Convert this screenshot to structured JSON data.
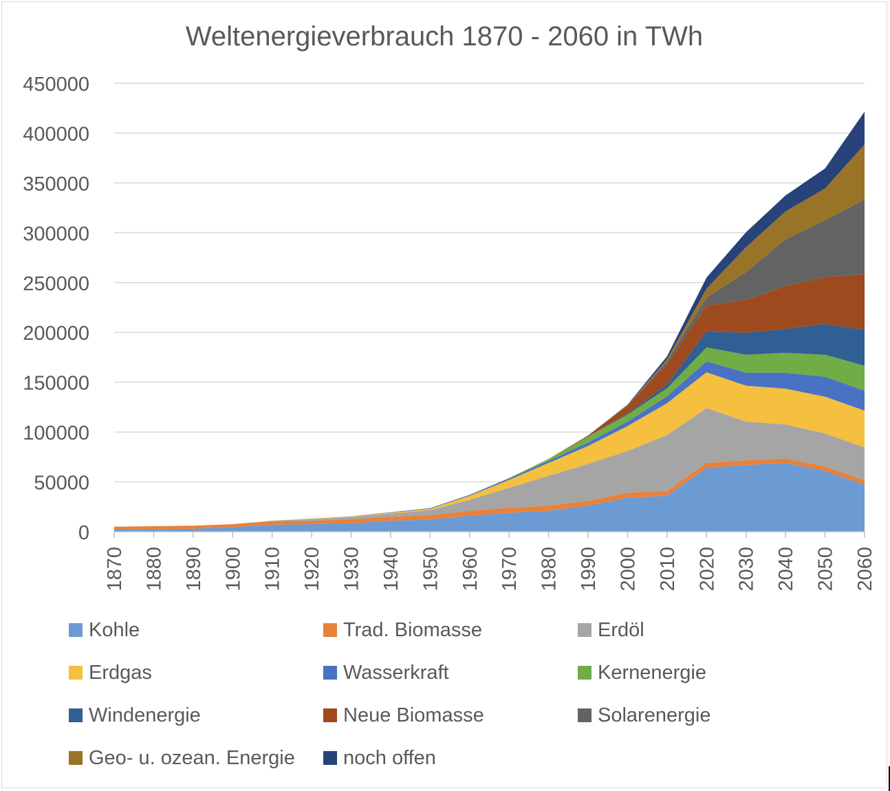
{
  "chart_data": {
    "type": "area",
    "stacked": true,
    "title": "Weltenergieverbrauch 1870 - 2060 in TWh",
    "xlabel": "",
    "ylabel": "",
    "ylim": [
      0,
      450000
    ],
    "yticks": [
      0,
      50000,
      100000,
      150000,
      200000,
      250000,
      300000,
      350000,
      400000,
      450000
    ],
    "ytick_labels": [
      "0",
      "50000",
      "100000",
      "150000",
      "200000",
      "250000",
      "300000",
      "350000",
      "400000",
      "450000"
    ],
    "gridlines": true,
    "legend_position": "bottom",
    "categories": [
      "1870",
      "1880",
      "1890",
      "1900",
      "1910",
      "1920",
      "1930",
      "1940",
      "1950",
      "1960",
      "1970",
      "1980",
      "1990",
      "2000",
      "2010",
      "2020",
      "2030",
      "2040",
      "2050",
      "2060"
    ],
    "series": [
      {
        "name": "Kohle",
        "color": "#6b9bd2",
        "values": [
          2000,
          2500,
          3000,
          4500,
          7000,
          7500,
          8500,
          11000,
          12000,
          16000,
          19000,
          21000,
          26000,
          34000,
          36000,
          64000,
          67000,
          69000,
          61000,
          47000
        ]
      },
      {
        "name": "Trad. Biomasse",
        "color": "#e8813a",
        "values": [
          3000,
          3000,
          3000,
          3000,
          3500,
          3500,
          4000,
          4000,
          4500,
          5000,
          5000,
          5000,
          5000,
          5000,
          5000,
          5000,
          4500,
          4500,
          4500,
          4500
        ]
      },
      {
        "name": "Erdöl",
        "color": "#a5a5a5",
        "values": [
          0,
          0,
          0,
          100,
          500,
          1500,
          2000,
          3000,
          5000,
          11000,
          20000,
          30000,
          37000,
          42000,
          56000,
          55000,
          39000,
          34000,
          33000,
          33000
        ]
      },
      {
        "name": "Erdgas",
        "color": "#f5bf3f",
        "values": [
          0,
          0,
          0,
          0,
          100,
          500,
          500,
          1000,
          1500,
          4000,
          8000,
          13000,
          18000,
          25000,
          32000,
          36000,
          36000,
          36000,
          37000,
          37000
        ]
      },
      {
        "name": "Wasserkraft",
        "color": "#4a72c4",
        "values": [
          0,
          0,
          0,
          0,
          0,
          100,
          300,
          500,
          700,
          1000,
          1500,
          2000,
          3500,
          4500,
          7000,
          11000,
          13000,
          16000,
          20000,
          20000
        ]
      },
      {
        "name": "Kernenergie",
        "color": "#70ad47",
        "values": [
          0,
          0,
          0,
          0,
          0,
          0,
          0,
          0,
          0,
          0,
          300,
          2000,
          6000,
          7000,
          8000,
          14000,
          18000,
          20000,
          22000,
          25000
        ]
      },
      {
        "name": "Windenergie",
        "color": "#2f5f93",
        "values": [
          0,
          0,
          0,
          0,
          0,
          0,
          0,
          0,
          0,
          0,
          0,
          0,
          100,
          1000,
          4000,
          16000,
          22000,
          24000,
          31000,
          36000
        ]
      },
      {
        "name": "Neue Biomasse",
        "color": "#9e4a1e",
        "values": [
          0,
          0,
          0,
          0,
          0,
          0,
          0,
          0,
          0,
          0,
          0,
          0,
          1000,
          8000,
          20000,
          26000,
          33000,
          43000,
          47000,
          56000
        ]
      },
      {
        "name": "Solarenergie",
        "color": "#636363",
        "values": [
          0,
          0,
          0,
          0,
          0,
          0,
          0,
          0,
          0,
          0,
          0,
          0,
          0,
          500,
          3000,
          8000,
          28000,
          47000,
          57000,
          75000
        ]
      },
      {
        "name": "Geo- u. ozean. Energie",
        "color": "#997428",
        "values": [
          0,
          0,
          0,
          0,
          0,
          0,
          0,
          0,
          0,
          0,
          0,
          0,
          0,
          300,
          2000,
          9000,
          25000,
          28000,
          32000,
          55000
        ]
      },
      {
        "name": "noch offen",
        "color": "#28427a",
        "values": [
          0,
          0,
          0,
          0,
          0,
          0,
          0,
          0,
          0,
          0,
          0,
          0,
          0,
          300,
          3000,
          11000,
          15000,
          16000,
          20000,
          33000
        ]
      }
    ]
  }
}
